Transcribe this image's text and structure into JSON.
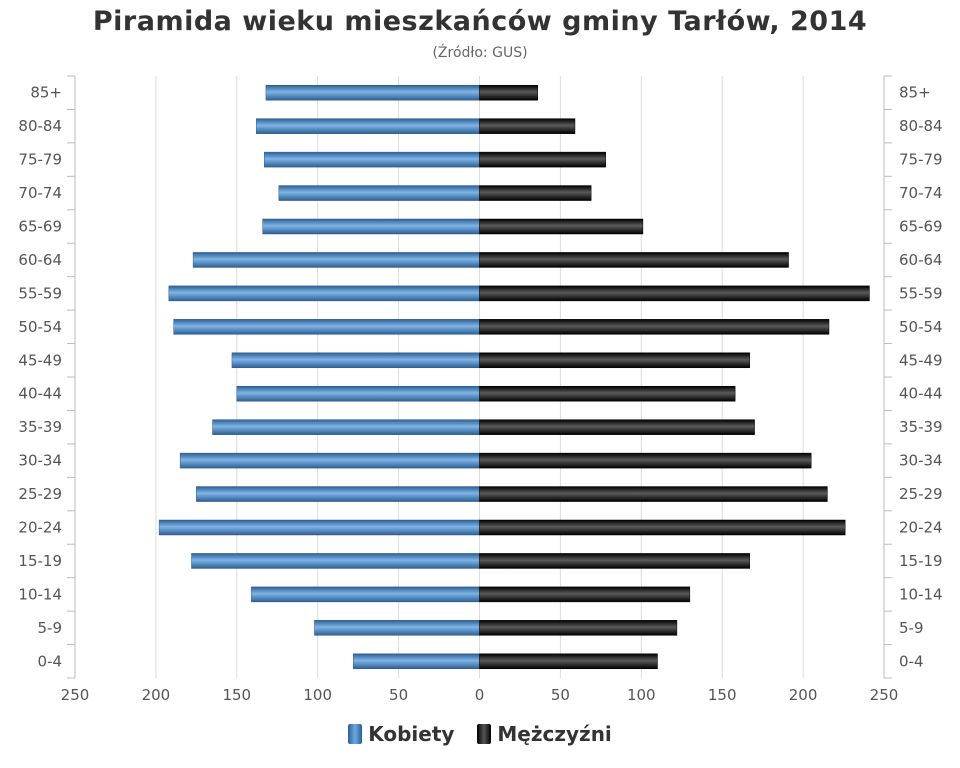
{
  "title": "Piramida wieku mieszkańców gminy Tarłów, 2014",
  "subtitle": "(Źródło: GUS)",
  "chart_data": {
    "type": "bar",
    "orientation": "horizontal-population-pyramid",
    "categories": [
      "85+",
      "80-84",
      "75-79",
      "70-74",
      "65-69",
      "60-64",
      "55-59",
      "50-54",
      "45-49",
      "40-44",
      "35-39",
      "30-34",
      "25-29",
      "20-24",
      "15-19",
      "10-14",
      "5-9",
      "0-4"
    ],
    "series": [
      {
        "name": "Kobiety",
        "side": "left",
        "color": "#4a86c5",
        "values": [
          132,
          138,
          133,
          124,
          134,
          177,
          192,
          189,
          153,
          150,
          165,
          185,
          175,
          198,
          178,
          141,
          102,
          78
        ]
      },
      {
        "name": "Mężczyźni",
        "side": "right",
        "color": "#1a1a1a",
        "values": [
          36,
          59,
          78,
          69,
          101,
          191,
          241,
          216,
          167,
          158,
          170,
          205,
          215,
          226,
          167,
          130,
          122,
          110
        ]
      }
    ],
    "x_ticks": [
      "250",
      "200",
      "150",
      "100",
      "50",
      "0",
      "50",
      "100",
      "150",
      "200",
      "250"
    ],
    "xlim": [
      -250,
      250
    ],
    "grid": true,
    "legend_position": "bottom-center"
  }
}
